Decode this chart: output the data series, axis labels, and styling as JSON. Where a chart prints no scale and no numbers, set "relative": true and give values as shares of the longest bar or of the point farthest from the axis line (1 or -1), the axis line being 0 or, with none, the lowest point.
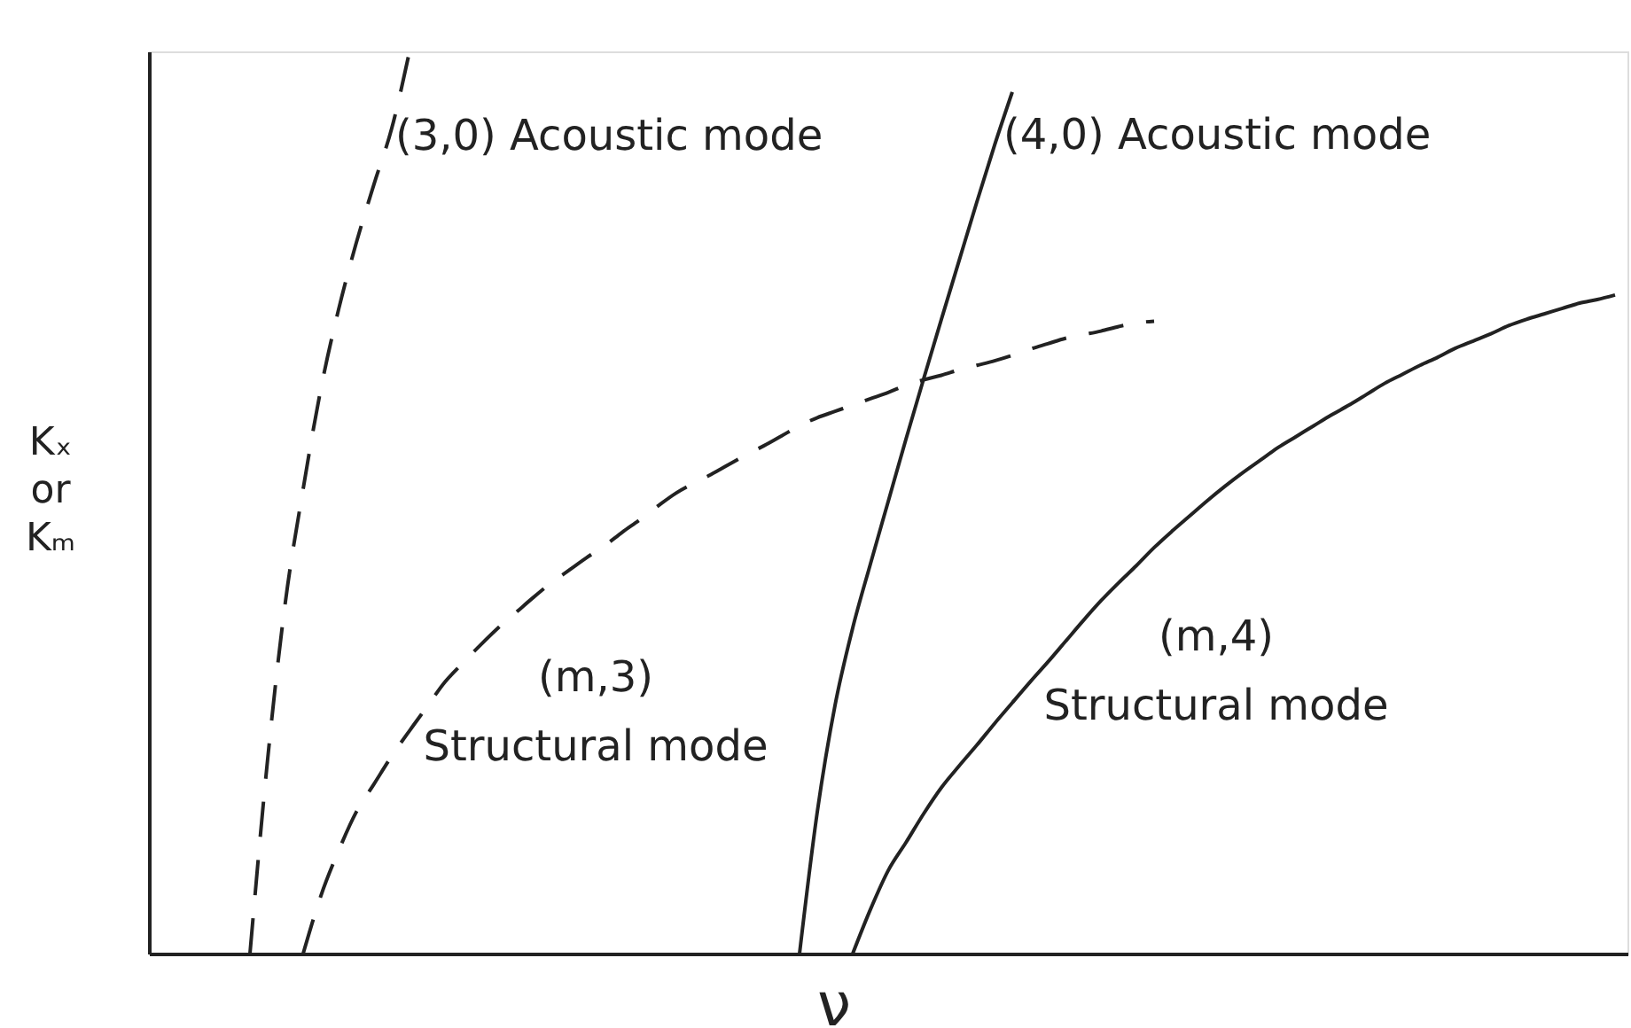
{
  "chart_data": {
    "type": "line",
    "relative": true,
    "tick_labels": false,
    "xlabel": "ν",
    "ylabel": "Kₓ or Kₘ",
    "categories": [
      null,
      null,
      null,
      null,
      null,
      null,
      null,
      null,
      null,
      null,
      null,
      null,
      null,
      null,
      null,
      null,
      null,
      null,
      null,
      null,
      null,
      null,
      null,
      null,
      null,
      null,
      null,
      null,
      null,
      null,
      null,
      null,
      null,
      null,
      null,
      null,
      null,
      null,
      null,
      null,
      null,
      null,
      null,
      null,
      null,
      null,
      null,
      null,
      null,
      null,
      null,
      null,
      null,
      null,
      null,
      null,
      null,
      null,
      null,
      null,
      null,
      null,
      null,
      null,
      null,
      null,
      null,
      null,
      null,
      null,
      null,
      null,
      null,
      null,
      null,
      null,
      null,
      null,
      null,
      null,
      null,
      null,
      null
    ],
    "series": [
      {
        "name": "(3,0) Acoustic mode",
        "color": "#222222",
        "line_style": "dashed",
        "values": [
          null,
          null,
          null,
          null,
          null,
          0,
          0.216,
          0.39,
          0.515,
          0.626,
          0.714,
          0.788,
          0.853,
          0.915,
          1,
          null,
          null,
          null,
          null,
          null,
          null,
          null,
          null,
          null,
          null,
          null,
          null,
          null,
          null,
          null,
          null,
          null,
          null,
          null,
          null,
          null,
          null,
          null,
          null,
          null,
          null,
          null,
          null,
          null,
          null,
          null,
          null,
          null,
          null,
          null,
          null,
          null,
          null,
          null,
          null,
          null,
          null,
          null,
          null,
          null,
          null,
          null,
          null,
          null,
          null,
          null,
          null,
          null,
          null,
          null,
          null,
          null,
          null,
          null,
          null,
          null,
          null,
          null,
          null,
          null,
          null,
          null,
          null
        ]
      },
      {
        "name": "(m,3)\nStructural mode",
        "color": "#222222",
        "line_style": "dashed",
        "values": [
          null,
          null,
          null,
          null,
          null,
          null,
          null,
          null,
          0,
          0.064,
          0.114,
          0.157,
          0.188,
          0.219,
          0.247,
          0.274,
          0.301,
          0.322,
          0.342,
          0.361,
          0.378,
          0.395,
          0.411,
          0.425,
          0.439,
          0.452,
          0.467,
          0.481,
          0.496,
          0.51,
          0.521,
          0.531,
          0.542,
          0.553,
          0.563,
          0.574,
          0.585,
          0.594,
          0.601,
          0.608,
          0.615,
          0.622,
          0.63,
          0.636,
          0.641,
          0.647,
          0.652,
          0.657,
          0.663,
          0.67,
          0.676,
          0.682,
          0.686,
          0.69,
          0.695,
          0.699,
          0.701,
          null,
          null,
          null,
          null,
          null,
          null,
          null,
          null,
          null,
          null,
          null,
          null,
          null,
          null,
          null,
          null,
          null,
          null,
          null,
          null,
          null,
          null,
          null,
          null,
          null,
          null
        ]
      },
      {
        "name": "(4,0) Acoustic mode",
        "color": "#222222",
        "line_style": "solid",
        "values": [
          null,
          null,
          null,
          null,
          null,
          null,
          null,
          null,
          null,
          null,
          null,
          null,
          null,
          null,
          null,
          null,
          null,
          null,
          null,
          null,
          null,
          null,
          null,
          null,
          null,
          null,
          null,
          null,
          null,
          null,
          null,
          null,
          null,
          null,
          null,
          null,
          0,
          0.157,
          0.275,
          0.361,
          0.432,
          0.501,
          0.57,
          0.637,
          0.703,
          0.768,
          0.833,
          0.896,
          0.955,
          null,
          null,
          null,
          null,
          null,
          null,
          null,
          null,
          null,
          null,
          null,
          null,
          null,
          null,
          null,
          null,
          null,
          null,
          null,
          null,
          null,
          null,
          null,
          null,
          null,
          null,
          null,
          null,
          null,
          null,
          null,
          null,
          null,
          null
        ]
      },
      {
        "name": "(m,4)\nStructural mode",
        "color": "#222222",
        "line_style": "solid",
        "values": [
          null,
          null,
          null,
          null,
          null,
          null,
          null,
          null,
          null,
          null,
          null,
          null,
          null,
          null,
          null,
          null,
          null,
          null,
          null,
          null,
          null,
          null,
          null,
          null,
          null,
          null,
          null,
          null,
          null,
          null,
          null,
          null,
          null,
          null,
          null,
          null,
          null,
          null,
          null,
          0,
          0.049,
          0.092,
          0.123,
          0.155,
          0.184,
          0.208,
          0.231,
          0.255,
          0.278,
          0.301,
          0.323,
          0.346,
          0.369,
          0.391,
          0.411,
          0.43,
          0.45,
          0.468,
          0.485,
          0.502,
          0.518,
          0.533,
          0.547,
          0.561,
          0.573,
          0.585,
          0.597,
          0.608,
          0.62,
          0.632,
          0.642,
          0.652,
          0.661,
          0.671,
          0.679,
          0.687,
          0.696,
          0.703,
          0.709,
          0.715,
          0.721,
          0.725,
          0.73
        ]
      }
    ]
  }
}
